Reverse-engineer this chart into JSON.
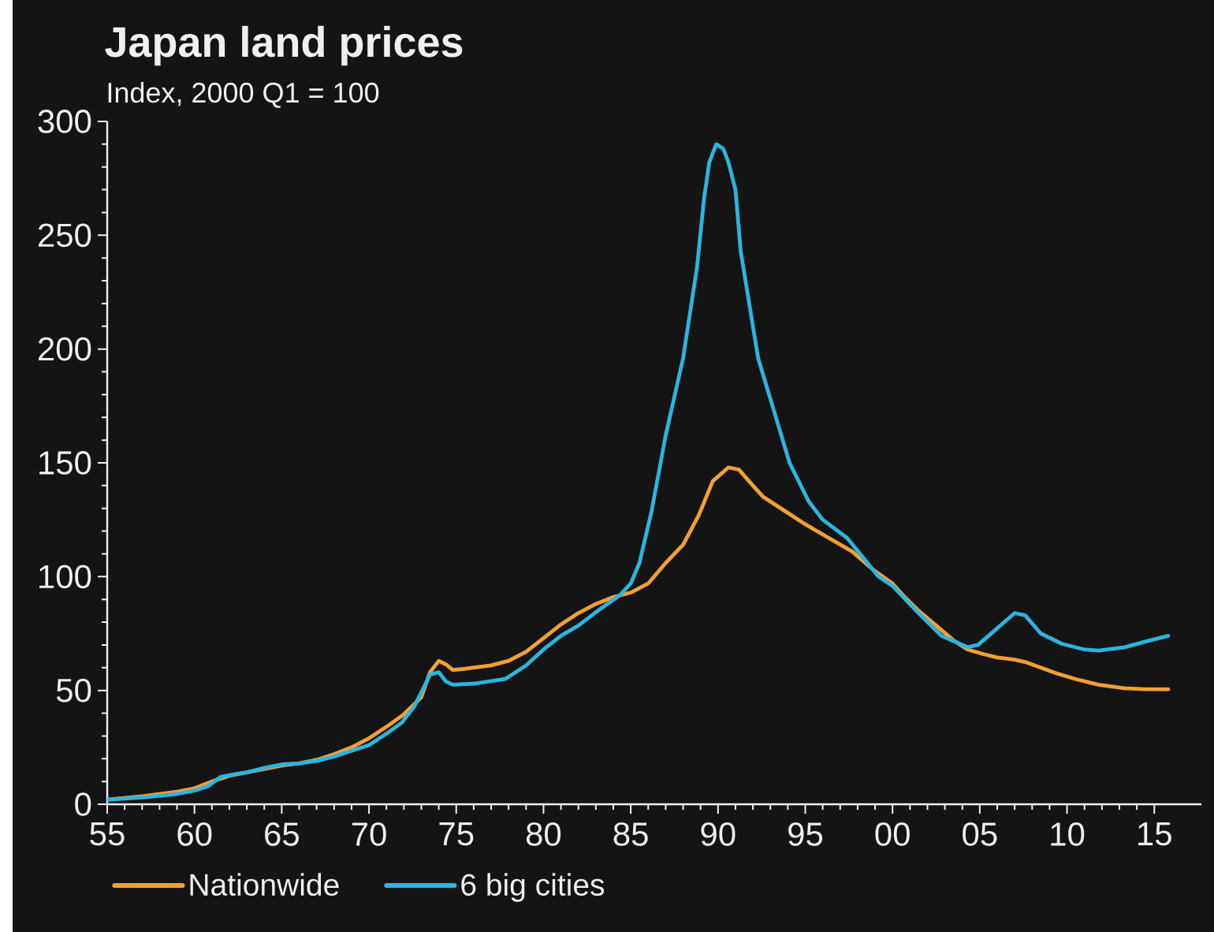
{
  "chart_data": {
    "type": "line",
    "title": "Japan land prices",
    "subtitle": "Index, 2000 Q1 = 100",
    "series": [
      {
        "name": "Nationwide",
        "color": "#f3a033",
        "x": [
          1955,
          1957,
          1959,
          1960,
          1961,
          1962,
          1963,
          1964,
          1965,
          1966,
          1967,
          1968,
          1969,
          1970,
          1971,
          1972,
          1973,
          1973.5,
          1974,
          1974.4,
          1974.8,
          1975.5,
          1977,
          1978,
          1979,
          1980,
          1981,
          1982,
          1983,
          1984,
          1985,
          1986,
          1987,
          1988,
          1988.9,
          1989.7,
          1990.6,
          1991.2,
          1992,
          1992.6,
          1993.8,
          1995,
          1995.9,
          1997.7,
          1998.9,
          2000,
          2000.7,
          2001.5,
          2002.5,
          2003.5,
          2004.3,
          2005.2,
          2006,
          2007,
          2007.6,
          2008.5,
          2009.4,
          2010.5,
          2011.8,
          2013.3,
          2014.5,
          2015.8
        ],
        "values": [
          2,
          3.5,
          5.5,
          7,
          10,
          12.5,
          14,
          15.5,
          17,
          18,
          19.5,
          22,
          25,
          29,
          34,
          39.5,
          47,
          58,
          63,
          61.5,
          59,
          59.5,
          61,
          63,
          67,
          73,
          79,
          84,
          88,
          91,
          93,
          97,
          106,
          114,
          127,
          142,
          148,
          147,
          140,
          135,
          129,
          123,
          119,
          111,
          103,
          97,
          91,
          85,
          78.5,
          72,
          68,
          66,
          64.5,
          63.5,
          62.5,
          60,
          57.5,
          55,
          52.5,
          51,
          50.5,
          50.5
        ]
      },
      {
        "name": "6 big cities",
        "color": "#2bb5df",
        "x": [
          1955,
          1957,
          1959,
          1960,
          1960.8,
          1961.5,
          1962.5,
          1963,
          1964,
          1965,
          1966,
          1967,
          1968,
          1969,
          1970,
          1971,
          1971.9,
          1972.6,
          1973.5,
          1974,
          1974.4,
          1974.8,
          1976,
          1977.8,
          1978.4,
          1979,
          1980,
          1981,
          1982,
          1983.2,
          1984.4,
          1985,
          1985.5,
          1986.2,
          1987,
          1988,
          1988.8,
          1989.2,
          1989.5,
          1989.9,
          1990.3,
          1990.6,
          1991,
          1991.3,
          1992.3,
          1993.2,
          1994.1,
          1995.2,
          1996,
          1997.4,
          1999.2,
          2000,
          2001.3,
          2002.8,
          2004.3,
          2004.9,
          2005.8,
          2007,
          2007.6,
          2008.5,
          2009.7,
          2011,
          2011.8,
          2013.3,
          2014.5,
          2015.8
        ],
        "values": [
          2,
          3,
          4.5,
          6,
          8,
          12,
          13.5,
          14,
          16,
          17.5,
          18,
          19,
          21,
          23.5,
          26,
          31,
          36,
          43,
          57,
          58,
          54,
          52.5,
          53,
          55,
          58,
          61,
          68,
          74,
          78.5,
          85.5,
          92,
          97,
          106,
          129,
          162,
          196,
          236,
          266,
          282,
          290,
          288,
          282,
          270,
          243,
          196,
          173,
          150,
          133,
          125,
          117,
          100,
          96,
          85.5,
          74,
          69,
          70,
          76,
          84,
          83,
          75,
          70.5,
          68,
          67.5,
          69,
          71.5,
          74
        ]
      }
    ],
    "xlim": [
      1955,
      2017.7
    ],
    "xticks": [
      {
        "value": 1955,
        "label": "55"
      },
      {
        "value": 1960,
        "label": "60"
      },
      {
        "value": 1965,
        "label": "65"
      },
      {
        "value": 1970,
        "label": "70"
      },
      {
        "value": 1975,
        "label": "75"
      },
      {
        "value": 1980,
        "label": "80"
      },
      {
        "value": 1985,
        "label": "85"
      },
      {
        "value": 1990,
        "label": "90"
      },
      {
        "value": 1995,
        "label": "95"
      },
      {
        "value": 2000,
        "label": "00"
      },
      {
        "value": 2005,
        "label": "05"
      },
      {
        "value": 2010,
        "label": "10"
      },
      {
        "value": 2015,
        "label": "15"
      }
    ],
    "ylim": [
      0,
      300
    ],
    "yticks": [
      0,
      50,
      100,
      150,
      200,
      250,
      300
    ],
    "grid": false,
    "legend": "bottom",
    "marker": "none",
    "line_style": "solid"
  }
}
